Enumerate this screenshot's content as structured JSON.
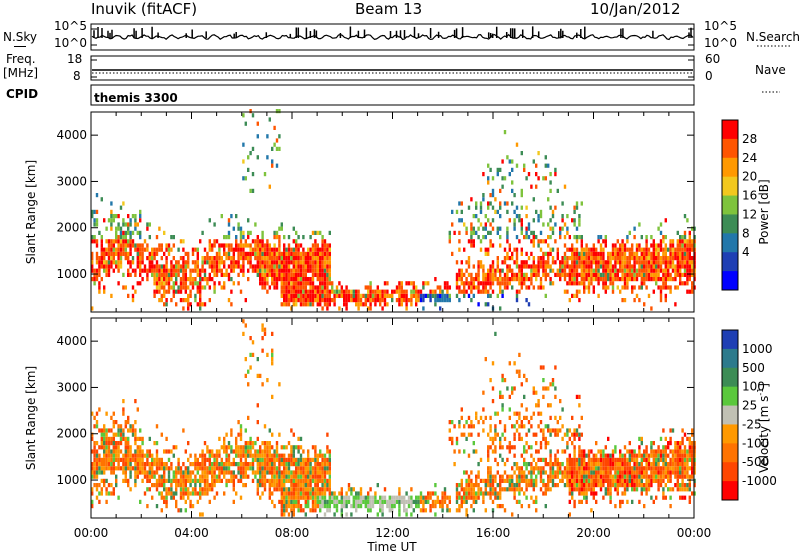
{
  "header": {
    "station": "Inuvik (fitACF)",
    "beam": "Beam 13",
    "date": "10/Jan/2012"
  },
  "top_panels": {
    "nsky_label": "N.Sky",
    "nsky_ticks": [
      "10^5",
      "10^0"
    ],
    "nsearch_label": "N.Search",
    "nsearch_ticks": [
      "10^5",
      "10^0"
    ],
    "freq_label": "Freq.",
    "freq_unit": "[MHz]",
    "freq_ticks": [
      "18",
      "8"
    ],
    "nave_label": "Nave",
    "nave_ticks": [
      "60",
      "0"
    ],
    "cpid_label": "CPID",
    "cpid_value": "themis 3300"
  },
  "chart_data": [
    {
      "type": "heatmap",
      "name": "power",
      "ylabel": "Slant Range [km]",
      "ylim": [
        180,
        4500
      ],
      "yticks": [
        "4000",
        "3000",
        "2000",
        "1000"
      ],
      "xlim_hours": [
        0,
        24
      ],
      "colorbar": {
        "label": "Power [dB]",
        "ticks": [
          "28",
          "24",
          "20",
          "16",
          "12",
          "8",
          "4"
        ],
        "colors": [
          "#ff0000",
          "#ff5500",
          "#ff9900",
          "#f2c81e",
          "#7ec33c",
          "#3c8c55",
          "#2277aa",
          "#1f3fb4",
          "#0000ff"
        ]
      }
    },
    {
      "type": "heatmap",
      "name": "velocity",
      "ylabel": "Slant Range [km]",
      "ylim": [
        180,
        4500
      ],
      "yticks": [
        "4000",
        "3000",
        "2000",
        "1000"
      ],
      "xlim_hours": [
        0,
        24
      ],
      "xlabel": "Time UT",
      "xticks": [
        "00:00",
        "04:00",
        "08:00",
        "12:00",
        "16:00",
        "20:00",
        "00:00"
      ],
      "colorbar": {
        "label": "Velocity",
        "unit": "[m s",
        "unit_sup": "-1",
        "unit_end": "]",
        "ticks": [
          "1000",
          "500",
          "100",
          "25",
          "-25",
          "-100",
          "-500",
          "-1000"
        ],
        "colors": [
          "#1f3fb4",
          "#2d7a8c",
          "#3c8c55",
          "#5ac83c",
          "#c0c0b4",
          "#ff9900",
          "#ff7300",
          "#ff4600",
          "#ff0000"
        ]
      }
    }
  ]
}
